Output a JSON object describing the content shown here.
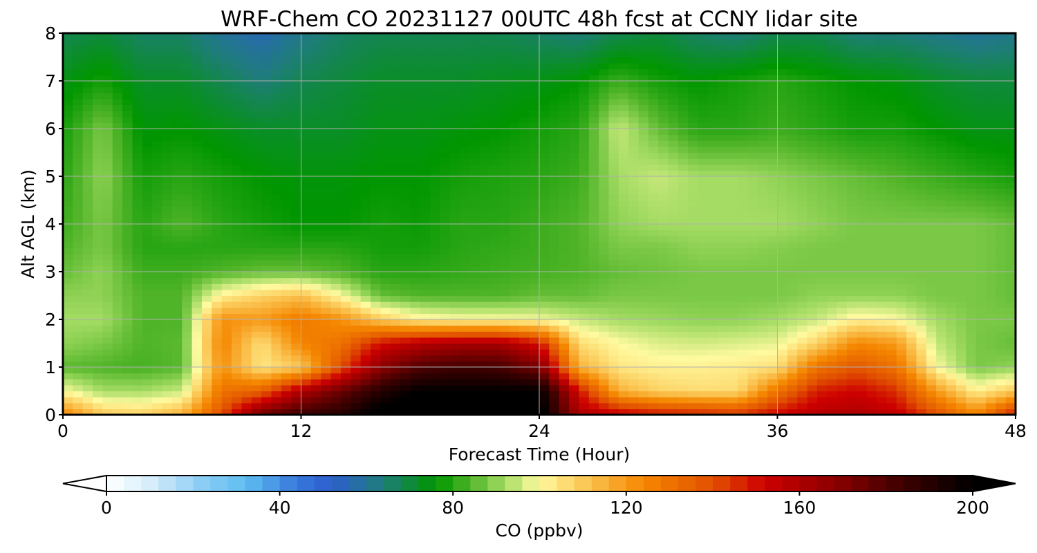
{
  "chart_data": {
    "type": "heatmap",
    "title": "WRF-Chem CO  20231127 00UTC 48h fcst at CCNY lidar site",
    "xlabel": "Forecast Time (Hour)",
    "ylabel": "Alt AGL (km)",
    "xlim": [
      0,
      48
    ],
    "ylim": [
      0,
      8
    ],
    "xticks": [
      0,
      12,
      24,
      36,
      48
    ],
    "yticks": [
      0,
      1,
      2,
      3,
      4,
      5,
      6,
      7,
      8
    ],
    "grid": true,
    "colorbar": {
      "label": "CO  (ppbv)",
      "min": 0,
      "max": 200,
      "ticks": [
        0,
        40,
        80,
        120,
        160,
        200
      ],
      "extend": "both",
      "orientation": "horizontal",
      "placement": "bottom"
    },
    "x_hours": [
      0,
      2,
      4,
      6,
      8,
      10,
      12,
      14,
      16,
      18,
      20,
      22,
      24,
      26,
      28,
      30,
      32,
      34,
      36,
      38,
      40,
      42,
      44,
      46,
      48
    ],
    "y_km": [
      0,
      0.5,
      1,
      1.5,
      2,
      2.5,
      3,
      3.5,
      4,
      5,
      6,
      7,
      8
    ],
    "co_ppbv_rows_by_altitude": [
      [
        125,
        110,
        108,
        115,
        140,
        175,
        185,
        190,
        205,
        210,
        205,
        205,
        205,
        160,
        155,
        150,
        148,
        145,
        152,
        158,
        160,
        155,
        140,
        125,
        150
      ],
      [
        100,
        92,
        92,
        95,
        130,
        135,
        160,
        175,
        190,
        200,
        200,
        200,
        200,
        150,
        115,
        108,
        106,
        106,
        130,
        148,
        152,
        145,
        120,
        102,
        110
      ],
      [
        85,
        84,
        83,
        85,
        122,
        104,
        110,
        140,
        168,
        180,
        183,
        182,
        172,
        115,
        104,
        102,
        102,
        103,
        105,
        130,
        138,
        130,
        100,
        88,
        90
      ],
      [
        90,
        88,
        84,
        85,
        125,
        105,
        125,
        130,
        150,
        158,
        162,
        162,
        150,
        106,
        100,
        97,
        96,
        97,
        98,
        108,
        124,
        120,
        95,
        88,
        86
      ],
      [
        92,
        92,
        84,
        84,
        122,
        120,
        128,
        122,
        110,
        102,
        100,
        100,
        99,
        95,
        92,
        91,
        90,
        90,
        92,
        95,
        102,
        100,
        92,
        88,
        88
      ],
      [
        90,
        90,
        84,
        84,
        102,
        108,
        112,
        100,
        86,
        84,
        84,
        84,
        86,
        86,
        88,
        88,
        88,
        88,
        88,
        90,
        90,
        90,
        88,
        88,
        86
      ],
      [
        86,
        90,
        82,
        82,
        84,
        86,
        86,
        84,
        80,
        80,
        81,
        82,
        83,
        84,
        86,
        87,
        88,
        88,
        88,
        88,
        88,
        88,
        88,
        88,
        86
      ],
      [
        84,
        88,
        80,
        80,
        80,
        80,
        80,
        80,
        78,
        78,
        80,
        81,
        82,
        84,
        88,
        88,
        90,
        90,
        89,
        88,
        88,
        88,
        88,
        88,
        86
      ],
      [
        82,
        88,
        80,
        84,
        80,
        78,
        76,
        76,
        78,
        77,
        80,
        80,
        82,
        84,
        90,
        92,
        92,
        92,
        92,
        90,
        88,
        88,
        88,
        88,
        86
      ],
      [
        80,
        90,
        78,
        80,
        78,
        76,
        75,
        75,
        76,
        76,
        78,
        79,
        80,
        82,
        92,
        95,
        92,
        92,
        90,
        88,
        86,
        84,
        82,
        80,
        78
      ],
      [
        78,
        88,
        75,
        76,
        74,
        72,
        72,
        72,
        74,
        74,
        75,
        76,
        78,
        80,
        95,
        86,
        80,
        80,
        82,
        80,
        78,
        78,
        76,
        74,
        74
      ],
      [
        74,
        78,
        72,
        72,
        68,
        64,
        68,
        70,
        72,
        72,
        72,
        73,
        74,
        76,
        82,
        78,
        76,
        78,
        80,
        78,
        76,
        75,
        72,
        70,
        70
      ],
      [
        68,
        70,
        66,
        66,
        60,
        56,
        62,
        66,
        68,
        68,
        68,
        68,
        66,
        64,
        68,
        70,
        66,
        64,
        68,
        68,
        64,
        64,
        62,
        60,
        62
      ]
    ]
  }
}
